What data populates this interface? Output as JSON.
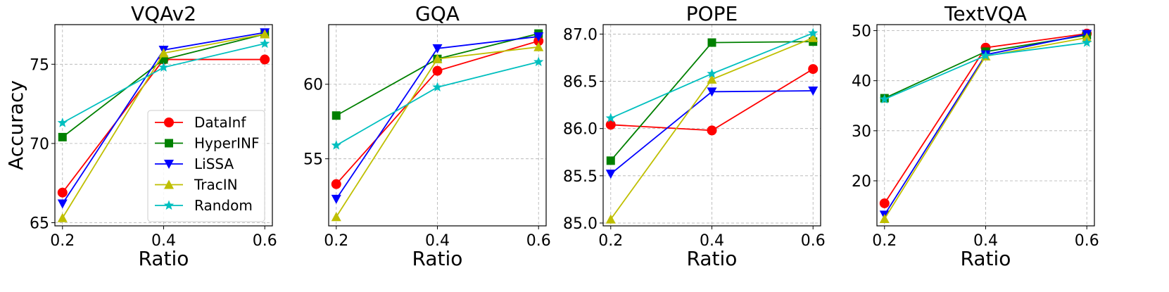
{
  "chart_data": [
    {
      "type": "line",
      "title": "VQAv2",
      "xlabel": "Ratio",
      "ylabel": "Accuracy",
      "x": [
        0.2,
        0.4,
        0.6
      ],
      "x_tick_labels": [
        "0.2",
        "0.4",
        "0.6"
      ],
      "xlim": [
        0.185,
        0.615
      ],
      "ylim": [
        64.8,
        77.5
      ],
      "yticks": [
        65,
        70,
        75
      ],
      "y_tick_labels": [
        "65",
        "70",
        "75"
      ],
      "grid": true,
      "legend": "lower-right",
      "series": [
        {
          "name": "DataInf",
          "values": [
            66.9,
            75.3,
            75.3
          ]
        },
        {
          "name": "HyperINF",
          "values": [
            70.4,
            75.3,
            76.9
          ]
        },
        {
          "name": "LiSSA",
          "values": [
            66.2,
            75.9,
            77.0
          ]
        },
        {
          "name": "TracIN",
          "values": [
            65.3,
            75.7,
            76.9
          ]
        },
        {
          "name": "Random",
          "values": [
            71.3,
            74.8,
            76.3
          ]
        }
      ]
    },
    {
      "type": "line",
      "title": "GQA",
      "xlabel": "Ratio",
      "ylabel": "",
      "x": [
        0.2,
        0.4,
        0.6
      ],
      "x_tick_labels": [
        "0.2",
        "0.4",
        "0.6"
      ],
      "xlim": [
        0.185,
        0.615
      ],
      "ylim": [
        50.5,
        64.0
      ],
      "yticks": [
        55,
        60
      ],
      "y_tick_labels": [
        "55",
        "60"
      ],
      "grid": true,
      "series": [
        {
          "name": "DataInf",
          "values": [
            53.3,
            60.9,
            62.9
          ]
        },
        {
          "name": "HyperINF",
          "values": [
            57.9,
            61.7,
            63.4
          ]
        },
        {
          "name": "LiSSA",
          "values": [
            52.3,
            62.4,
            63.2
          ]
        },
        {
          "name": "TracIN",
          "values": [
            51.1,
            61.7,
            62.5
          ]
        },
        {
          "name": "Random",
          "values": [
            55.9,
            59.8,
            61.5
          ]
        }
      ]
    },
    {
      "type": "line",
      "title": "POPE",
      "xlabel": "Ratio",
      "ylabel": "",
      "x": [
        0.2,
        0.4,
        0.6
      ],
      "x_tick_labels": [
        "0.2",
        "0.4",
        "0.6"
      ],
      "xlim": [
        0.185,
        0.615
      ],
      "ylim": [
        84.97,
        87.1
      ],
      "yticks": [
        85.0,
        85.5,
        86.0,
        86.5,
        87.0
      ],
      "y_tick_labels": [
        "85.0",
        "85.5",
        "86.0",
        "86.5",
        "87.0"
      ],
      "grid": true,
      "series": [
        {
          "name": "DataInf",
          "values": [
            86.04,
            85.98,
            86.63
          ]
        },
        {
          "name": "HyperINF",
          "values": [
            85.66,
            86.91,
            86.92
          ]
        },
        {
          "name": "LiSSA",
          "values": [
            85.52,
            86.39,
            86.4
          ]
        },
        {
          "name": "TracIN",
          "values": [
            85.04,
            86.52,
            86.96
          ]
        },
        {
          "name": "Random",
          "values": [
            86.11,
            86.58,
            87.01
          ]
        }
      ]
    },
    {
      "type": "line",
      "title": "TextVQA",
      "xlabel": "Ratio",
      "ylabel": "",
      "x": [
        0.2,
        0.4,
        0.6
      ],
      "x_tick_labels": [
        "0.2",
        "0.4",
        "0.6"
      ],
      "xlim": [
        0.185,
        0.615
      ],
      "ylim": [
        11.0,
        51.2
      ],
      "yticks": [
        20,
        30,
        40,
        50
      ],
      "y_tick_labels": [
        "20",
        "30",
        "40",
        "50"
      ],
      "grid": true,
      "series": [
        {
          "name": "DataInf",
          "values": [
            15.5,
            46.6,
            49.4
          ]
        },
        {
          "name": "HyperINF",
          "values": [
            36.5,
            45.8,
            49.1
          ]
        },
        {
          "name": "LiSSA",
          "values": [
            13.2,
            45.2,
            49.3
          ]
        },
        {
          "name": "TracIN",
          "values": [
            12.4,
            44.9,
            48.6
          ]
        },
        {
          "name": "Random",
          "values": [
            36.3,
            45.0,
            47.6
          ]
        }
      ]
    }
  ],
  "series_styles": [
    {
      "name": "DataInf",
      "color": "#ff0000",
      "marker": "circle"
    },
    {
      "name": "HyperINF",
      "color": "#008000",
      "marker": "square"
    },
    {
      "name": "LiSSA",
      "color": "#0000ff",
      "marker": "triangle-down"
    },
    {
      "name": "TracIN",
      "color": "#bfbf00",
      "marker": "triangle-up"
    },
    {
      "name": "Random",
      "color": "#00bfbf",
      "marker": "star"
    }
  ]
}
